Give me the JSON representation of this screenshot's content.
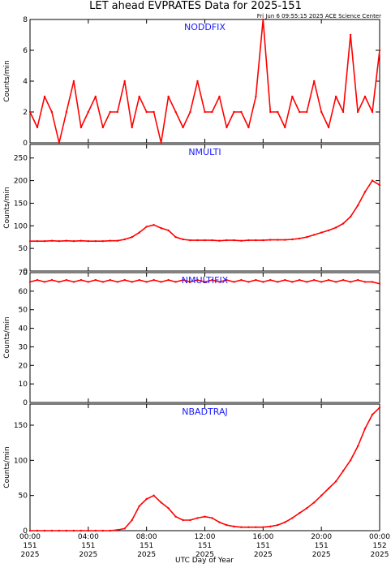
{
  "chart_data": {
    "type": "line",
    "title": "LET ahead EVPRATES Data for 2025-151",
    "timestamp": "Fri Jun  6 09:55:15 2025 ACE Science Center",
    "xlabel": "UTC Day of Year",
    "x_ticks": [
      {
        "x": 0,
        "lines": [
          "00:00",
          "151",
          "2025"
        ]
      },
      {
        "x": 4,
        "lines": [
          "04:00",
          "151",
          "2025"
        ]
      },
      {
        "x": 8,
        "lines": [
          "08:00",
          "151",
          "2025"
        ]
      },
      {
        "x": 12,
        "lines": [
          "12:00",
          "151",
          "2025"
        ]
      },
      {
        "x": 16,
        "lines": [
          "16:00",
          "151",
          "2025"
        ]
      },
      {
        "x": 20,
        "lines": [
          "20:00",
          "151",
          "2025"
        ]
      },
      {
        "x": 24,
        "lines": [
          "00:00",
          "152",
          "2025"
        ]
      }
    ],
    "xlim": [
      0,
      24
    ],
    "grid": false,
    "line_color": "#ff0000",
    "panels": [
      {
        "name": "NODDFIX",
        "ylabel": "Counts/min",
        "ylim": [
          0,
          8
        ],
        "yticks": [
          0,
          2,
          4,
          6,
          8
        ],
        "series": [
          {
            "x": [
              0.0,
              0.5,
              1.0,
              1.5,
              2.0,
              2.5,
              3.0,
              3.5,
              4.0,
              4.5,
              5.0,
              5.5,
              6.0,
              6.5,
              7.0,
              7.5,
              8.0,
              8.5,
              9.0,
              9.5,
              10.0,
              10.5,
              11.0,
              11.5,
              12.0,
              12.5,
              13.0,
              13.5,
              14.0,
              14.5,
              15.0,
              15.5,
              16.0,
              16.5,
              17.0,
              17.5,
              18.0,
              18.5,
              19.0,
              19.5,
              20.0,
              20.5,
              21.0,
              21.5,
              22.0,
              22.5,
              23.0,
              23.5,
              24.0
            ],
            "values": [
              2,
              1,
              3,
              2,
              0,
              2,
              4,
              1,
              2,
              3,
              1,
              2,
              2,
              4,
              1,
              3,
              2,
              2,
              0,
              3,
              2,
              1,
              2,
              4,
              2,
              2,
              3,
              1,
              2,
              2,
              1,
              3,
              8,
              2,
              2,
              1,
              3,
              2,
              2,
              4,
              2,
              1,
              3,
              2,
              7,
              2,
              3,
              2,
              6
            ]
          }
        ]
      },
      {
        "name": "NMULTI",
        "ylabel": "Counts/min",
        "ylim": [
          0,
          280
        ],
        "yticks": [
          0,
          50,
          100,
          150,
          200,
          250
        ],
        "series": [
          {
            "x": [
              0.0,
              0.5,
              1.0,
              1.5,
              2.0,
              2.5,
              3.0,
              3.5,
              4.0,
              4.5,
              5.0,
              5.5,
              6.0,
              6.5,
              7.0,
              7.5,
              8.0,
              8.5,
              9.0,
              9.5,
              10.0,
              10.5,
              11.0,
              11.5,
              12.0,
              12.5,
              13.0,
              13.5,
              14.0,
              14.5,
              15.0,
              15.5,
              16.0,
              16.5,
              17.0,
              17.5,
              18.0,
              18.5,
              19.0,
              19.5,
              20.0,
              20.5,
              21.0,
              21.5,
              22.0,
              22.5,
              23.0,
              23.5,
              24.0
            ],
            "values": [
              66,
              66,
              66,
              67,
              66,
              67,
              66,
              67,
              66,
              66,
              66,
              67,
              67,
              70,
              75,
              85,
              98,
              102,
              95,
              90,
              75,
              70,
              68,
              68,
              68,
              68,
              67,
              68,
              68,
              67,
              68,
              68,
              68,
              69,
              69,
              69,
              70,
              72,
              75,
              80,
              85,
              90,
              96,
              105,
              120,
              145,
              175,
              200,
              190
            ]
          }
        ]
      },
      {
        "name": "NMULTIFIX",
        "ylabel": "Counts/min",
        "ylim": [
          0,
          70
        ],
        "yticks": [
          0,
          10,
          20,
          30,
          40,
          50,
          60,
          70
        ],
        "series": [
          {
            "x": [
              0.0,
              0.5,
              1.0,
              1.5,
              2.0,
              2.5,
              3.0,
              3.5,
              4.0,
              4.5,
              5.0,
              5.5,
              6.0,
              6.5,
              7.0,
              7.5,
              8.0,
              8.5,
              9.0,
              9.5,
              10.0,
              10.5,
              11.0,
              11.5,
              12.0,
              12.5,
              13.0,
              13.5,
              14.0,
              14.5,
              15.0,
              15.5,
              16.0,
              16.5,
              17.0,
              17.5,
              18.0,
              18.5,
              19.0,
              19.5,
              20.0,
              20.5,
              21.0,
              21.5,
              22.0,
              22.5,
              23.0,
              23.5,
              24.0
            ],
            "values": [
              65,
              66,
              65,
              66,
              65,
              66,
              65,
              66,
              65,
              66,
              65,
              66,
              65,
              66,
              65,
              66,
              65,
              66,
              65,
              66,
              65,
              66,
              65,
              66,
              65,
              66,
              65,
              66,
              65,
              66,
              65,
              66,
              65,
              66,
              65,
              66,
              65,
              66,
              65,
              66,
              65,
              66,
              65,
              66,
              65,
              66,
              65,
              65,
              64
            ]
          }
        ]
      },
      {
        "name": "NBADTRAJ",
        "ylabel": "Counts/min",
        "ylim": [
          0,
          180
        ],
        "yticks": [
          0,
          50,
          100,
          150
        ],
        "series": [
          {
            "x": [
              0.0,
              0.5,
              1.0,
              1.5,
              2.0,
              2.5,
              3.0,
              3.5,
              4.0,
              4.5,
              5.0,
              5.5,
              6.0,
              6.5,
              7.0,
              7.5,
              8.0,
              8.5,
              9.0,
              9.5,
              10.0,
              10.5,
              11.0,
              11.5,
              12.0,
              12.5,
              13.0,
              13.5,
              14.0,
              14.5,
              15.0,
              15.5,
              16.0,
              16.5,
              17.0,
              17.5,
              18.0,
              18.5,
              19.0,
              19.5,
              20.0,
              20.5,
              21.0,
              21.5,
              22.0,
              22.5,
              23.0,
              23.5,
              24.0
            ],
            "values": [
              0,
              0,
              0,
              0,
              0,
              0,
              0,
              0,
              0,
              0,
              0,
              0,
              1,
              3,
              15,
              35,
              45,
              50,
              40,
              32,
              20,
              15,
              15,
              18,
              20,
              18,
              12,
              8,
              6,
              5,
              5,
              5,
              5,
              6,
              8,
              12,
              18,
              25,
              32,
              40,
              50,
              60,
              70,
              85,
              100,
              120,
              145,
              165,
              175
            ]
          }
        ]
      }
    ]
  }
}
